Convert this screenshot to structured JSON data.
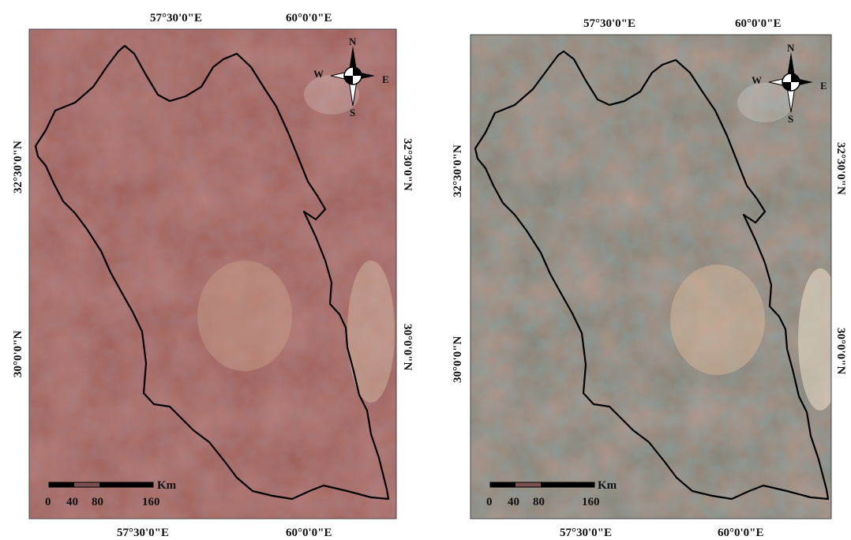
{
  "panels": [
    {
      "id": "left",
      "top_labels": [
        "57°30'0\"E",
        "60°0'0\"E"
      ],
      "bottom_labels": [
        "57°30'0\"E",
        "60°0'0\"E"
      ],
      "left_labels": [
        "32°30'0\"N",
        "30°0'0\"N"
      ],
      "right_labels": [
        "32°30'0\"N",
        "30°0'0\"N"
      ],
      "compass": {
        "n": "N",
        "s": "S",
        "e": "E",
        "w": "W"
      },
      "scalebar": {
        "unit": "Km",
        "ticks": [
          "0",
          "40",
          "80",
          "160"
        ]
      },
      "colors": {
        "base": "#a0605a",
        "dark": "#6a3f45",
        "light": "#c9867c",
        "boundary": "#000000"
      }
    },
    {
      "id": "right",
      "top_labels": [
        "57°30'0\"E",
        "60°0'0\"E"
      ],
      "bottom_labels": [
        "57°30'0\"E",
        "60°0'0\"E"
      ],
      "left_labels": [
        "32°30'0\"N",
        "30°0'0\"N"
      ],
      "right_labels": [
        "32°30'0\"N",
        "30°0'0\"N"
      ],
      "compass": {
        "n": "N",
        "s": "S",
        "e": "E",
        "w": "W"
      },
      "scalebar": {
        "unit": "Km",
        "ticks": [
          "0",
          "40",
          "80",
          "160"
        ]
      },
      "colors": {
        "base": "#8a8478",
        "dark": "#4f6a6a",
        "light": "#c8907e",
        "boundary": "#000000"
      }
    }
  ]
}
